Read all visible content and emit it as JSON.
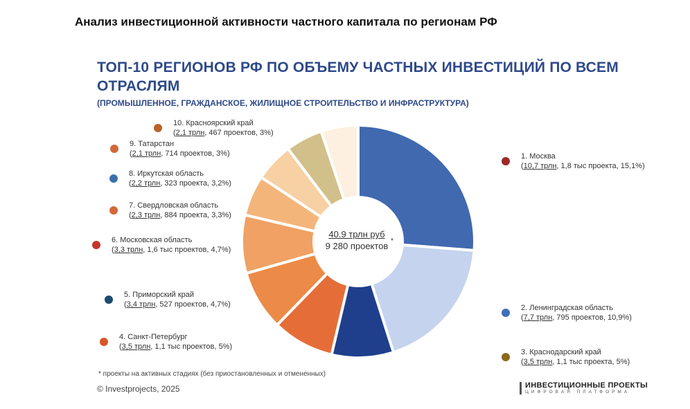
{
  "page": {
    "doc_title": "Анализ инвестиционной активности частного капитала по регионам РФ",
    "footnote": "* проекты на активных стадиях (без приостановленных и отмененных)",
    "copyright": "© Investprojects, 2025",
    "brand_main": "ИНВЕСТИЦИОННЫЕ ПРОЕКТЫ",
    "brand_sub": "ЦИФРОВАЯ ПЛАТФОРМА"
  },
  "chart_data": {
    "type": "pie",
    "title": "ТОП-10 РЕГИОНОВ РФ ПО ОБЪЕМУ ЧАСТНЫХ ИНВЕСТИЦИЙ ПО ВСЕМ ОТРАСЛЯМ",
    "subtitle": "(ПРОМЫШЛЕННОЕ, ГРАЖДАНСКОЕ, ЖИЛИЩНОЕ СТРОИТЕЛЬСТВО И ИНФРАСТРУКТУРА)",
    "center_value": "40.9 трлн руб",
    "center_projects": "9 280 проектов",
    "center_mark": "*",
    "legend_placement": "around",
    "slices": [
      {
        "name": "1. Москва",
        "amount": "10,7 трлн",
        "details": ", 1,8 тыс проекта, 15,1%)",
        "value": 10.7,
        "color": "#4169b0",
        "icon_color": "#9c2a2a"
      },
      {
        "name": "2. Ленинградская область",
        "amount": "7,7 трлн",
        "details": ", 795 проектов, 10,9%)",
        "value": 7.7,
        "color": "#c5d3ee",
        "icon_color": "#3f6fb8"
      },
      {
        "name": "3. Краснодарский край",
        "amount": "3,5 трлн",
        "details": ", 1,1 тыс проекта, 5%)",
        "value": 3.5,
        "color": "#1f3f8c",
        "icon_color": "#8a6a1e"
      },
      {
        "name": "4. Санкт-Петербург",
        "amount": "3,5 трлн",
        "details": ", 1,1 тыс проектов, 5%)",
        "value": 3.5,
        "color": "#e56e38",
        "icon_color": "#d8562a"
      },
      {
        "name": "5. Приморский край",
        "amount": "3,4 трлн",
        "details": ", 527 проектов, 4,7%)",
        "value": 3.4,
        "color": "#ec8a48",
        "icon_color": "#1c4a70"
      },
      {
        "name": "6. Московская область",
        "amount": "3,3 трлн",
        "details": ", 1,6 тыс проектов, 4,7%)",
        "value": 3.3,
        "color": "#f0a163",
        "icon_color": "#c4352a"
      },
      {
        "name": "7. Свердловская область",
        "amount": "2,3 трлн",
        "details": ", 884 проекта, 3,3%)",
        "value": 2.3,
        "color": "#f4b57a",
        "icon_color": "#d3683a"
      },
      {
        "name": "8. Иркутская область",
        "amount": "2,2 трлн",
        "details": ", 323 проекта, 3,2%)",
        "value": 2.2,
        "color": "#f7d1a3",
        "icon_color": "#3c6fb0"
      },
      {
        "name": "9. Татарстан",
        "amount": "2,1 трлн",
        "details": ", 714 проектов, 3%)",
        "value": 2.1,
        "color": "#d2c08a",
        "icon_color": "#d0693a"
      },
      {
        "name": "10. Красноярский край",
        "amount": "2,1 трлн",
        "details": ", 467 проектов, 3%)",
        "value": 2.1,
        "color": "#fdf0e0",
        "icon_color": "#b8622a"
      }
    ]
  }
}
